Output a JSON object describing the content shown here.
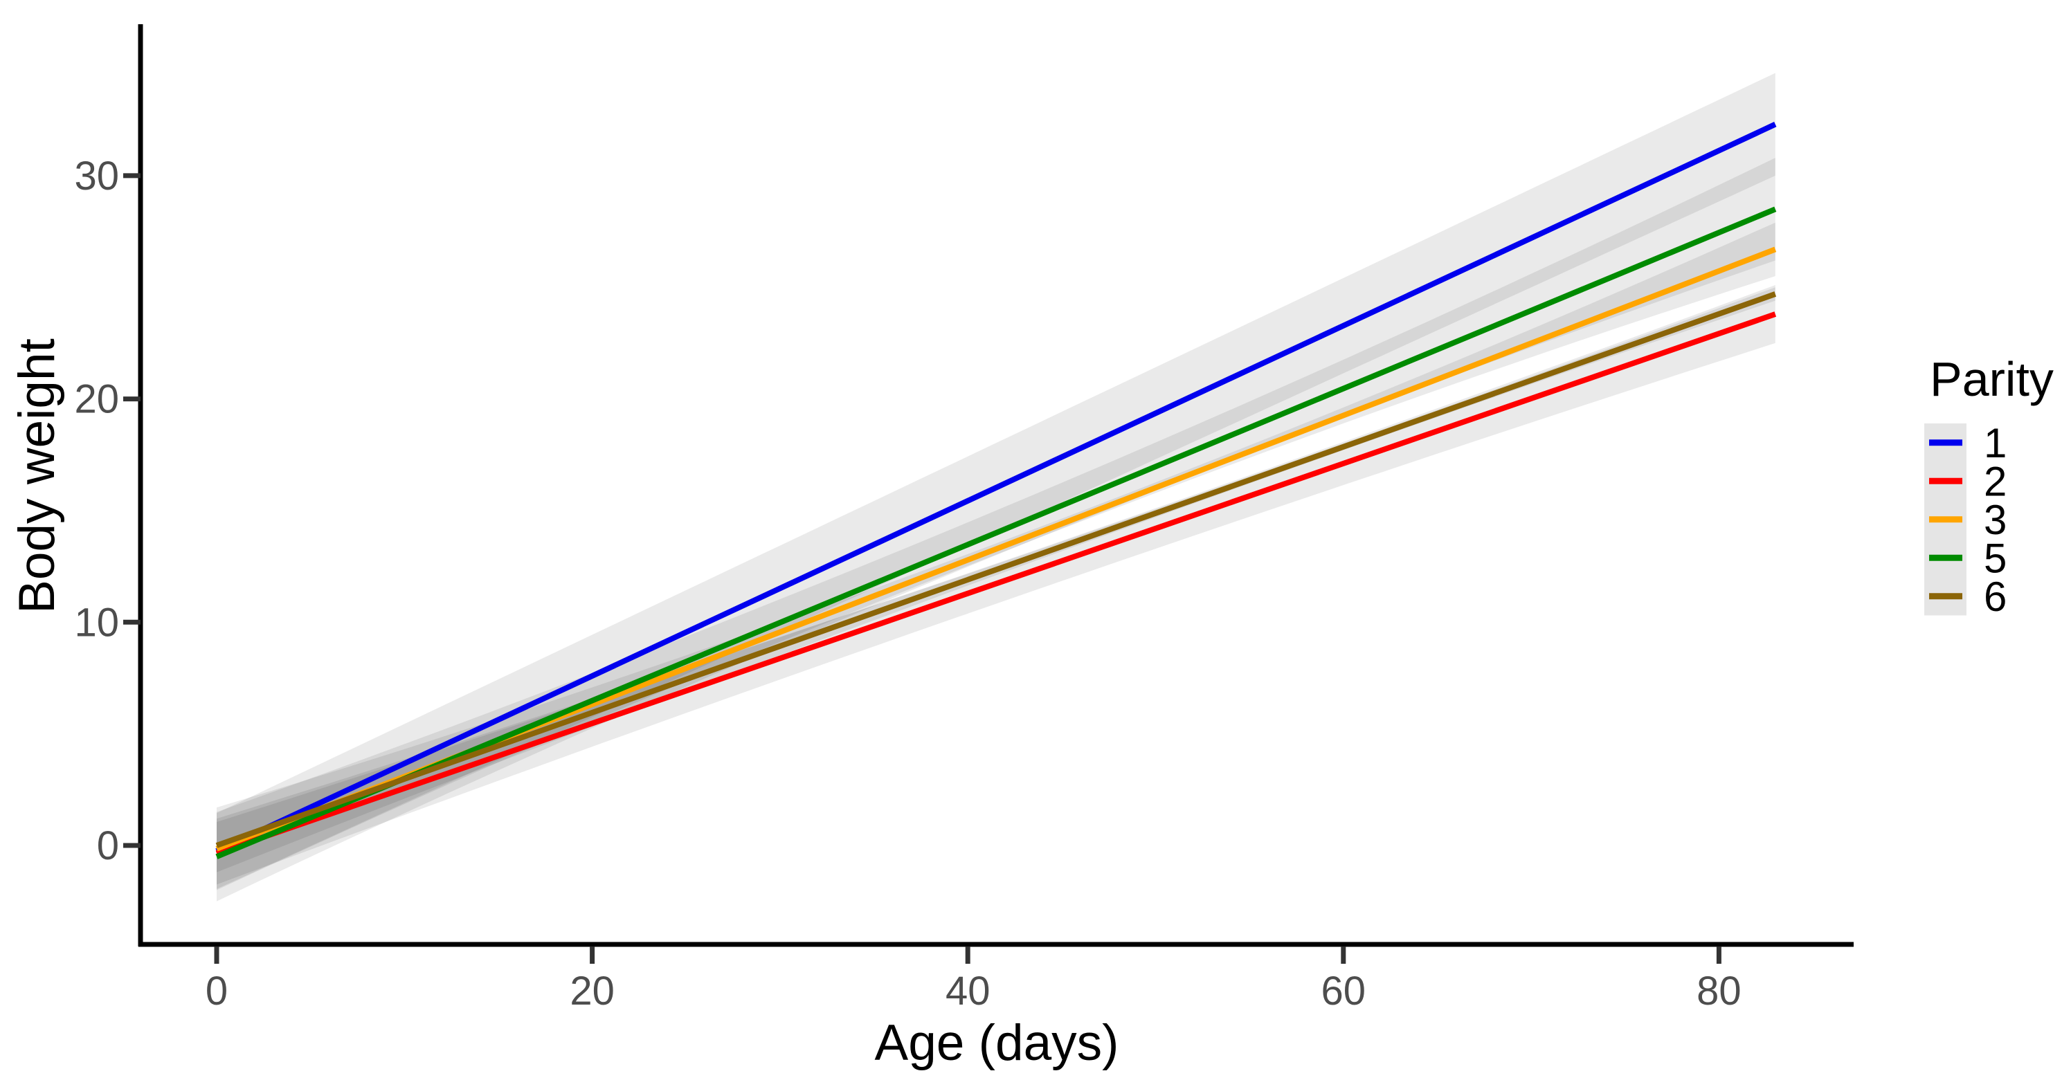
{
  "chart_data": {
    "type": "line",
    "title": "",
    "xlabel": "Age (days)",
    "ylabel": "Body weight",
    "legend_title": "Parity",
    "legend_position": "right",
    "grid": false,
    "plot_background": "#FFFFFF",
    "axis_color": "#000000",
    "tick_label_color": "#4D4D4D",
    "x_ticks": [
      0,
      20,
      40,
      60,
      80
    ],
    "y_ticks": [
      0,
      10,
      20,
      30
    ],
    "xlim": [
      -4.1,
      87.3
    ],
    "ylim": [
      -4.4,
      36.8
    ],
    "age_range": [
      0,
      83
    ],
    "band_fill_alpha": 0.082,
    "legend_key_fill": "#E5E5E5",
    "series": [
      {
        "name": "1",
        "color": "#0000EE",
        "ages": [
          0,
          83
        ],
        "values": [
          -0.25,
          32.3
        ],
        "ci_halfwidths_start_mid_end": [
          1.7,
          2.0,
          2.3
        ]
      },
      {
        "name": "2",
        "color": "#FF0000",
        "ages": [
          0,
          83
        ],
        "values": [
          -0.35,
          23.8
        ],
        "ci_halfwidths_start_mid_end": [
          1.4,
          0.9,
          1.3
        ]
      },
      {
        "name": "3",
        "color": "#FFA500",
        "ages": [
          0,
          83
        ],
        "values": [
          -0.15,
          26.7
        ],
        "ci_halfwidths_start_mid_end": [
          1.85,
          0.25,
          1.2
        ]
      },
      {
        "name": "5",
        "color": "#008B00",
        "ages": [
          0,
          83
        ],
        "values": [
          -0.5,
          28.5
        ],
        "ci_halfwidths_start_mid_end": [
          2.0,
          1.0,
          2.3
        ]
      },
      {
        "name": "6",
        "color": "#8B6508",
        "ages": [
          0,
          83
        ],
        "values": [
          0.0,
          24.7
        ],
        "ci_halfwidths_start_mid_end": [
          1.2,
          0.25,
          0.3
        ]
      }
    ]
  }
}
